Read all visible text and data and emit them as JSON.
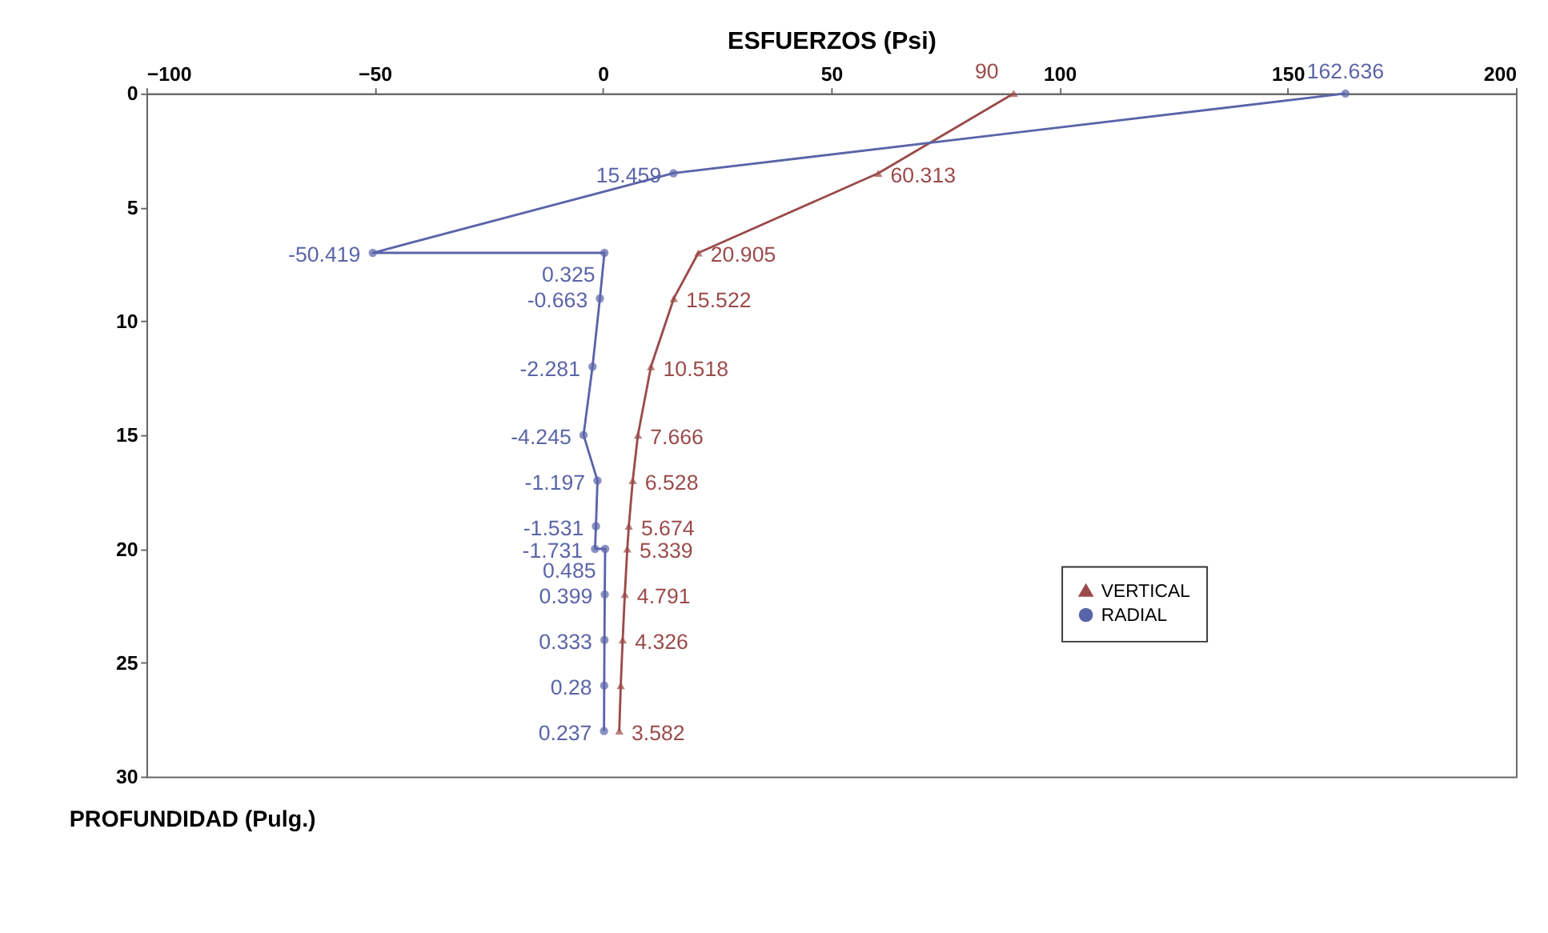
{
  "chart_data": {
    "type": "line",
    "orientation": "horizontal",
    "xlabel": "ESFUERZOS (Psi)",
    "ylabel": "PROFUNDIDAD (Pulg.)",
    "xlim": [
      -100,
      200
    ],
    "xticks": [
      -100,
      -50,
      0,
      50,
      100,
      150,
      200
    ],
    "ylim": [
      30,
      0
    ],
    "yticks": [
      0,
      5,
      10,
      15,
      20,
      25,
      30
    ],
    "grid": false,
    "legend": "bottom right",
    "series": [
      {
        "name": "VERTICAL",
        "color": "#9b4a4a",
        "marker": "triangle",
        "x": [
          0,
          3.5,
          7,
          9,
          12,
          15,
          17,
          19,
          20,
          22,
          24,
          26,
          28
        ],
        "values": [
          90,
          60.313,
          20.905,
          15.522,
          10.518,
          7.666,
          6.528,
          5.674,
          5.339,
          4.791,
          4.326,
          3.9,
          3.582
        ],
        "value_labels": [
          "90",
          "60.313",
          "20.905",
          "15.522",
          "10.518",
          "7.666",
          "6.528",
          "5.674",
          "5.339",
          "4.791",
          "4.326",
          null,
          "3.582"
        ]
      },
      {
        "name": "RADIAL",
        "color": "#5a64a8",
        "marker": "circle",
        "x": [
          0,
          3.5,
          7,
          7,
          9,
          12,
          15,
          17,
          19,
          20,
          20,
          22,
          24,
          26,
          28
        ],
        "values": [
          162.636,
          15.459,
          -50.419,
          0.325,
          -0.663,
          -2.281,
          -4.245,
          -1.197,
          -1.531,
          -1.731,
          0.485,
          0.399,
          0.333,
          0.28,
          0.237
        ],
        "value_labels": [
          "162.636",
          "15.459",
          "-50.419",
          "0.325",
          "-0.663",
          "-2.281",
          "-4.245",
          "-1.197",
          "-1.531",
          "-1.731",
          "0.485",
          "0.399",
          "0.333",
          "0.28",
          "0.237"
        ]
      }
    ]
  }
}
